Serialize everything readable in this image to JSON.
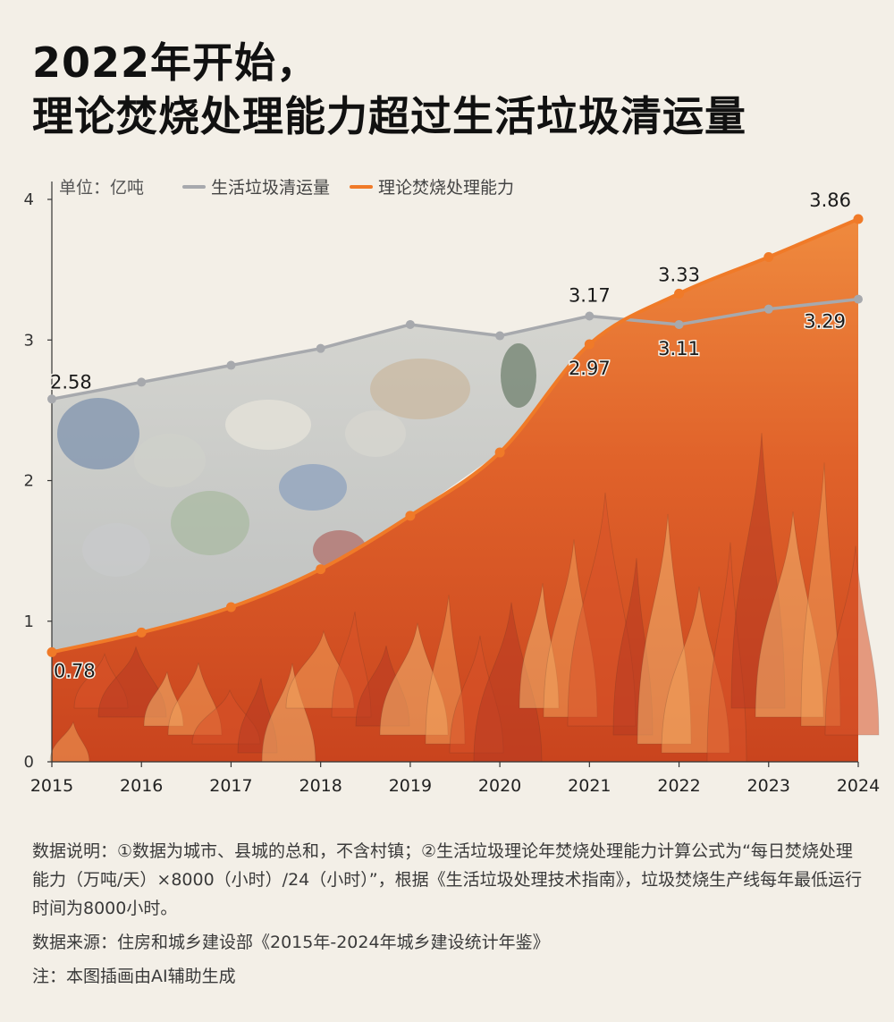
{
  "title": {
    "line1": "2022年开始，",
    "line2": "理论焚烧处理能力超过生活垃圾清运量"
  },
  "chart_data": {
    "type": "line",
    "unit_label": "单位：亿吨",
    "x": [
      "2015",
      "2016",
      "2017",
      "2018",
      "2019",
      "2020",
      "2021",
      "2022",
      "2023",
      "2024"
    ],
    "series": [
      {
        "name": "生活垃圾清运量",
        "color": "#a7a9ad",
        "values": [
          2.58,
          2.7,
          2.82,
          2.94,
          3.11,
          3.03,
          3.17,
          3.11,
          3.22,
          3.29
        ]
      },
      {
        "name": "理论焚烧处理能力",
        "color": "#f07a28",
        "values": [
          0.78,
          0.92,
          1.1,
          1.37,
          1.75,
          2.2,
          2.97,
          3.33,
          3.59,
          3.86
        ]
      }
    ],
    "data_labels": [
      {
        "series": 0,
        "index": 0,
        "text": "2.58"
      },
      {
        "series": 0,
        "index": 6,
        "text": "3.17"
      },
      {
        "series": 0,
        "index": 7,
        "text": "3.11"
      },
      {
        "series": 0,
        "index": 9,
        "text": "3.29"
      },
      {
        "series": 1,
        "index": 0,
        "text": "0.78"
      },
      {
        "series": 1,
        "index": 6,
        "text": "2.97"
      },
      {
        "series": 1,
        "index": 7,
        "text": "3.33"
      },
      {
        "series": 1,
        "index": 9,
        "text": "3.86"
      }
    ],
    "ylim": [
      0,
      4
    ],
    "yticks": [
      "0",
      "1",
      "2",
      "3",
      "4"
    ],
    "grid": false,
    "legend_position": "top-left"
  },
  "notes": {
    "description": "数据说明：①数据为城市、县城的总和，不含村镇；②生活垃圾理论年焚烧处理能力计算公式为“每日焚烧处理能力（万吨/天）×8000（小时）/24（小时）”，根据《生活垃圾处理技术指南》，垃圾焚烧生产线每年最低运行时间为8000小时。",
    "source": "数据来源：住房和城乡建设部《2015年-2024年城乡建设统计年鉴》",
    "ai_note": "注：本图插画由AI辅助生成"
  }
}
